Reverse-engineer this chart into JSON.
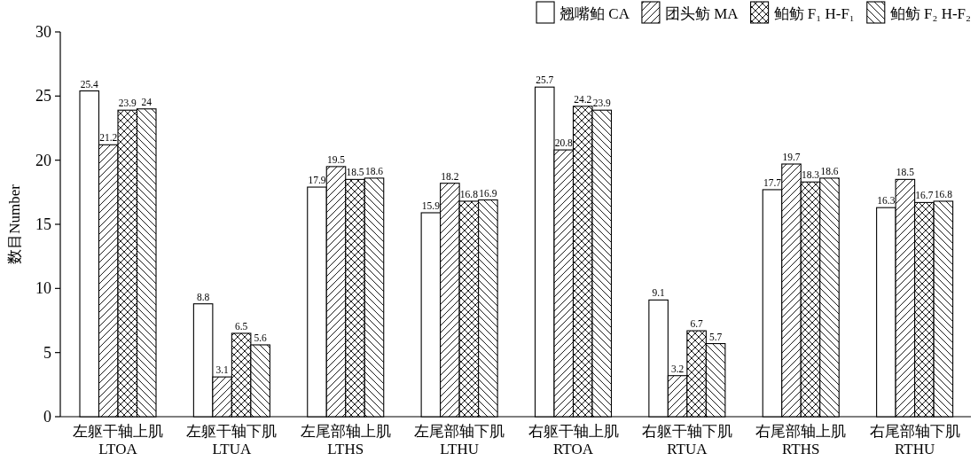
{
  "chart_data": {
    "type": "bar",
    "ylabel": "数目Number",
    "categories": [
      "左躯干轴上肌\nLTOA",
      "左躯干轴下肌\nLTUA",
      "左尾部轴上肌\nLTHS",
      "左尾部轴下肌\nLTHU",
      "右躯干轴上肌\nRTOA",
      "右躯干轴下肌\nRTUA",
      "右尾部轴上肌\nRTHS",
      "右尾部轴下肌\nRTHU"
    ],
    "series": [
      {
        "name": "翘嘴鲌 CA",
        "color": "#ffffff",
        "values": [
          25.4,
          8.8,
          17.9,
          15.9,
          25.7,
          9.1,
          17.7,
          16.3
        ]
      },
      {
        "name": "团头鲂 MA",
        "color": "#000000",
        "values": [
          21.2,
          3.1,
          19.5,
          18.2,
          20.8,
          3.2,
          19.7,
          18.5
        ]
      },
      {
        "name": "鲌鲂 F₁ H-F₁",
        "color": "#000000",
        "values": [
          23.9,
          6.5,
          18.5,
          16.8,
          24.2,
          6.7,
          18.3,
          16.7
        ]
      },
      {
        "name": "鲌鲂 F₂ H-F₂",
        "color": "#000000",
        "values": [
          24,
          5.6,
          18.6,
          16.9,
          23.9,
          5.7,
          18.6,
          16.8
        ]
      }
    ],
    "ylim": [
      0,
      30
    ],
    "yticks": [
      0,
      5,
      10,
      15,
      20,
      25,
      30
    ],
    "data_labels": true,
    "grid": false,
    "legend": "top right"
  }
}
